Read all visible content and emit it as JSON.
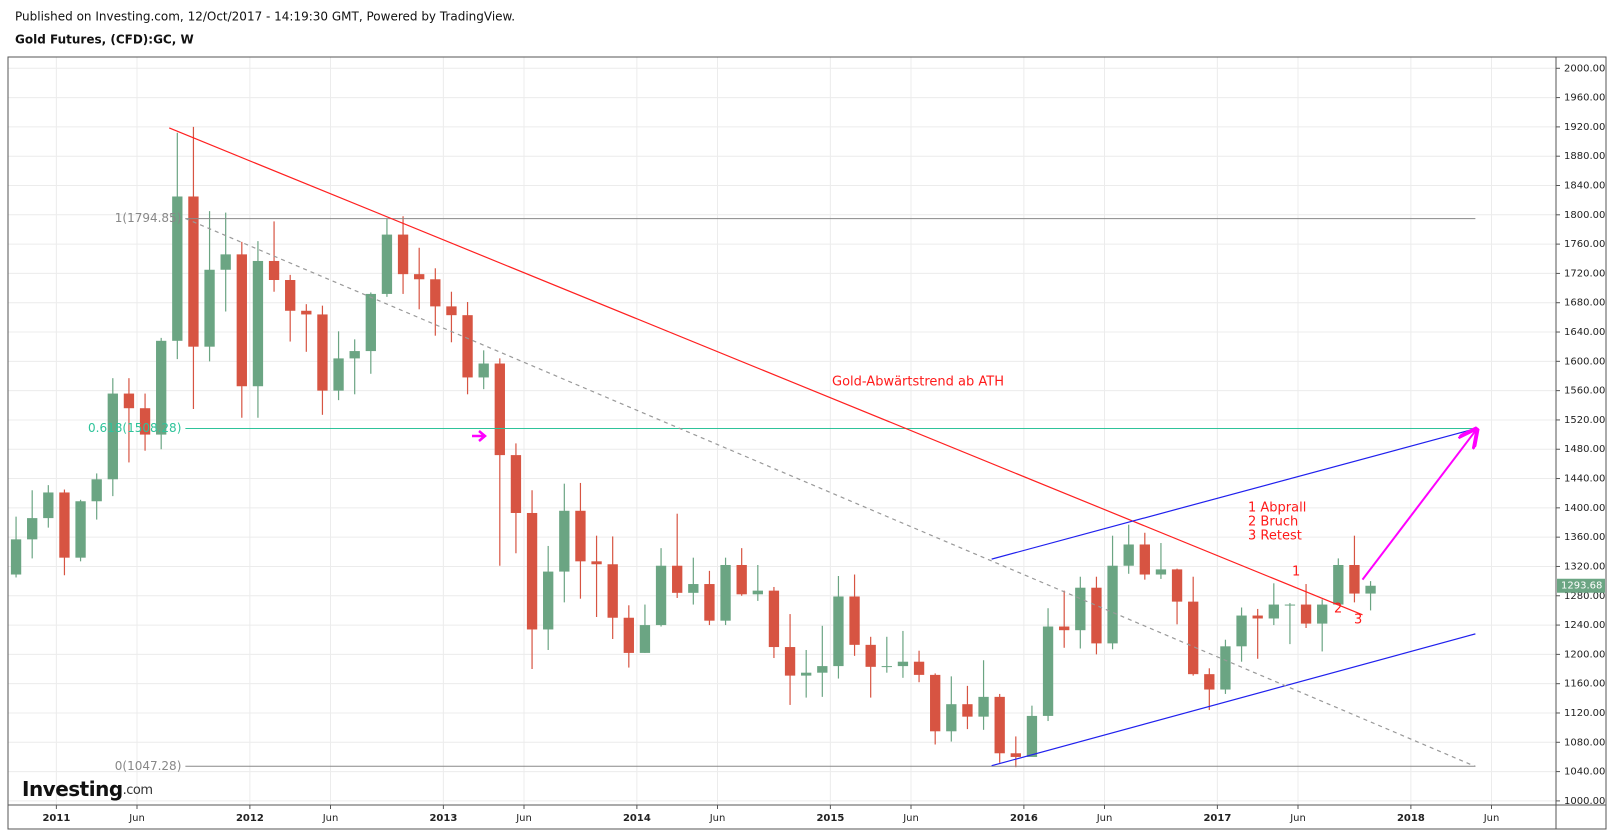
{
  "header": {
    "published": "Published on Investing.com, 12/Oct/2017 - 14:19:30 GMT, Powered by TradingView.",
    "symbol": "Gold Futures, (CFD):GC, W"
  },
  "logo": {
    "name": "Investing",
    "suffix": ".com"
  },
  "chart_data": {
    "type": "candlestick",
    "x": [
      "2010-10",
      "2010-11",
      "2010-12",
      "2011-01",
      "2011-02",
      "2011-03",
      "2011-04",
      "2011-05",
      "2011-06",
      "2011-07",
      "2011-08",
      "2011-09",
      "2011-10",
      "2011-11",
      "2011-12",
      "2012-01",
      "2012-02",
      "2012-03",
      "2012-04",
      "2012-05",
      "2012-06",
      "2012-07",
      "2012-08",
      "2012-09",
      "2012-10",
      "2012-11",
      "2012-12",
      "2013-01",
      "2013-02",
      "2013-03",
      "2013-04",
      "2013-05",
      "2013-06",
      "2013-07",
      "2013-08",
      "2013-09",
      "2013-10",
      "2013-11",
      "2013-12",
      "2014-01",
      "2014-02",
      "2014-03",
      "2014-04",
      "2014-05",
      "2014-06",
      "2014-07",
      "2014-08",
      "2014-09",
      "2014-10",
      "2014-11",
      "2014-12",
      "2015-01",
      "2015-02",
      "2015-03",
      "2015-04",
      "2015-05",
      "2015-06",
      "2015-07",
      "2015-08",
      "2015-09",
      "2015-10",
      "2015-11",
      "2015-12",
      "2016-01",
      "2016-02",
      "2016-03",
      "2016-04",
      "2016-05",
      "2016-06",
      "2016-07",
      "2016-08",
      "2016-09",
      "2016-10",
      "2016-11",
      "2016-12",
      "2017-01",
      "2017-02",
      "2017-03",
      "2017-04",
      "2017-05",
      "2017-06",
      "2017-07",
      "2017-08",
      "2017-09",
      "2017-10"
    ],
    "open": [
      1309,
      1357,
      1386,
      1421,
      1332,
      1409,
      1439,
      1556,
      1536,
      1500,
      1628,
      1825,
      1620,
      1725,
      1746,
      1566,
      1737,
      1711,
      1669,
      1664,
      1560,
      1604,
      1614,
      1692,
      1773,
      1719,
      1712,
      1675,
      1663,
      1578,
      1597,
      1472,
      1393,
      1234,
      1313,
      1396,
      1327,
      1323,
      1250,
      1202,
      1240,
      1321,
      1284,
      1296,
      1246,
      1322,
      1282,
      1287,
      1210,
      1171,
      1175,
      1184,
      1279,
      1213,
      1183,
      1184,
      1190,
      1172,
      1095,
      1132,
      1115,
      1142,
      1065,
      1060,
      1116,
      1238,
      1233,
      1291,
      1215,
      1321,
      1350,
      1309,
      1316,
      1272,
      1173,
      1152,
      1211,
      1253,
      1249,
      1268,
      1268,
      1242,
      1268,
      1322,
      1283
    ],
    "high": [
      1388,
      1424,
      1431,
      1425,
      1411,
      1447,
      1577,
      1577,
      1556,
      1632,
      1912,
      1920,
      1805,
      1803,
      1763,
      1764,
      1791,
      1718,
      1678,
      1676,
      1641,
      1630,
      1694,
      1795,
      1798,
      1755,
      1727,
      1695,
      1681,
      1615,
      1604,
      1488,
      1424,
      1348,
      1433,
      1434,
      1362,
      1361,
      1267,
      1268,
      1345,
      1392,
      1332,
      1314,
      1332,
      1345,
      1322,
      1292,
      1255,
      1206,
      1239,
      1307,
      1309,
      1224,
      1224,
      1232,
      1205,
      1174,
      1170,
      1157,
      1192,
      1146,
      1088,
      1130,
      1263,
      1287,
      1306,
      1306,
      1362,
      1377,
      1366,
      1352,
      1317,
      1306,
      1181,
      1220,
      1264,
      1262,
      1297,
      1270,
      1296,
      1275,
      1331,
      1362,
      1300
    ],
    "low": [
      1305,
      1331,
      1373,
      1308,
      1327,
      1384,
      1416,
      1462,
      1478,
      1480,
      1603,
      1535,
      1600,
      1668,
      1523,
      1523,
      1695,
      1627,
      1613,
      1527,
      1547,
      1555,
      1583,
      1688,
      1692,
      1671,
      1635,
      1626,
      1555,
      1562,
      1321,
      1338,
      1180,
      1206,
      1271,
      1276,
      1251,
      1221,
      1182,
      1202,
      1238,
      1277,
      1268,
      1240,
      1240,
      1280,
      1273,
      1195,
      1131,
      1141,
      1142,
      1167,
      1198,
      1141,
      1175,
      1168,
      1162,
      1077,
      1081,
      1098,
      1097,
      1052,
      1046,
      1062,
      1109,
      1209,
      1208,
      1200,
      1207,
      1310,
      1302,
      1303,
      1241,
      1171,
      1124,
      1146,
      1190,
      1194,
      1240,
      1214,
      1236,
      1204,
      1267,
      1271,
      1260
    ],
    "close": [
      1357,
      1386,
      1421,
      1332,
      1409,
      1439,
      1556,
      1536,
      1500,
      1628,
      1825,
      1620,
      1725,
      1746,
      1566,
      1737,
      1711,
      1669,
      1664,
      1560,
      1604,
      1614,
      1692,
      1773,
      1719,
      1712,
      1675,
      1663,
      1578,
      1597,
      1472,
      1393,
      1234,
      1313,
      1396,
      1327,
      1323,
      1250,
      1202,
      1240,
      1321,
      1284,
      1296,
      1246,
      1322,
      1282,
      1287,
      1210,
      1171,
      1175,
      1184,
      1279,
      1213,
      1183,
      1184,
      1190,
      1172,
      1095,
      1132,
      1115,
      1142,
      1065,
      1060,
      1116,
      1238,
      1233,
      1291,
      1215,
      1321,
      1350,
      1309,
      1316,
      1272,
      1173,
      1152,
      1211,
      1253,
      1249,
      1268,
      1268,
      1242,
      1268,
      1322,
      1283,
      1293.68
    ],
    "up_color": "#6ba583",
    "down_color": "#d75442",
    "xlim": [
      "2010-10",
      "2018-10"
    ],
    "xticks": [
      {
        "value": "2011-01",
        "label": "2011"
      },
      {
        "value": "2011-06",
        "label": "Jun"
      },
      {
        "value": "2012-01",
        "label": "2012"
      },
      {
        "value": "2012-06",
        "label": "Jun"
      },
      {
        "value": "2013-01",
        "label": "2013"
      },
      {
        "value": "2013-06",
        "label": "Jun"
      },
      {
        "value": "2014-01",
        "label": "2014"
      },
      {
        "value": "2014-06",
        "label": "Jun"
      },
      {
        "value": "2015-01",
        "label": "2015"
      },
      {
        "value": "2015-06",
        "label": "Jun"
      },
      {
        "value": "2016-01",
        "label": "2016"
      },
      {
        "value": "2016-06",
        "label": "Jun"
      },
      {
        "value": "2017-01",
        "label": "2017"
      },
      {
        "value": "2017-06",
        "label": "Jun"
      },
      {
        "value": "2018-01",
        "label": "2018"
      },
      {
        "value": "2018-06",
        "label": "Jun"
      }
    ],
    "ylim": [
      994.4,
      2015.4
    ],
    "yticks": [
      {
        "value": 1000,
        "label": "1000.00"
      },
      {
        "value": 1040,
        "label": "1040.00"
      },
      {
        "value": 1080,
        "label": "1080.00"
      },
      {
        "value": 1120,
        "label": "1120.00"
      },
      {
        "value": 1160,
        "label": "1160.00"
      },
      {
        "value": 1200,
        "label": "1200.00"
      },
      {
        "value": 1240,
        "label": "1240.00"
      },
      {
        "value": 1280,
        "label": "1280.00"
      },
      {
        "value": 1320,
        "label": "1320.00"
      },
      {
        "value": 1360,
        "label": "1360.00"
      },
      {
        "value": 1400,
        "label": "1400.00"
      },
      {
        "value": 1440,
        "label": "1440.00"
      },
      {
        "value": 1480,
        "label": "1480.00"
      },
      {
        "value": 1520,
        "label": "1520.00"
      },
      {
        "value": 1560,
        "label": "1560.00"
      },
      {
        "value": 1600,
        "label": "1600.00"
      },
      {
        "value": 1640,
        "label": "1640.00"
      },
      {
        "value": 1680,
        "label": "1680.00"
      },
      {
        "value": 1720,
        "label": "1720.00"
      },
      {
        "value": 1760,
        "label": "1760.00"
      },
      {
        "value": 1800,
        "label": "1800.00"
      },
      {
        "value": 1840,
        "label": "1840.00"
      },
      {
        "value": 1880,
        "label": "1880.00"
      },
      {
        "value": 1920,
        "label": "1920.00"
      },
      {
        "value": 1960,
        "label": "1960.00"
      },
      {
        "value": 2000,
        "label": "2000.00"
      }
    ],
    "grid": true,
    "fib_levels": [
      {
        "value": 1794.85,
        "label": "1(1794.85)",
        "color": "#888888"
      },
      {
        "value": 1508.28,
        "label": "0.618(1508.28)",
        "color": "#2ec39a"
      },
      {
        "value": 1047.28,
        "label": "0(1047.28)",
        "color": "#888888"
      }
    ],
    "fib_span": [
      "2011-09",
      "2018-05"
    ],
    "trendlines": [
      {
        "x": [
          "2011-08",
          "2017-10"
        ],
        "y": [
          1918.5,
          1254
        ],
        "color": "#ff2020",
        "dash": false
      },
      {
        "x": [
          "2015-11",
          "2018-05"
        ],
        "y": [
          1330,
          1508
        ],
        "color": "#2020ee",
        "dash": false
      },
      {
        "x": [
          "2015-11",
          "2018-05"
        ],
        "y": [
          1048,
          1228
        ],
        "color": "#2020ee",
        "dash": false
      },
      {
        "x": [
          "2011-09",
          "2018-05"
        ],
        "y": [
          1795,
          1047
        ],
        "color": "#999999",
        "dash": true
      },
      {
        "x": [
          "2017-10",
          "2018-05"
        ],
        "y": [
          1302,
          1505
        ],
        "color": "#ff00ff",
        "dash": false,
        "arrow": true
      }
    ],
    "annotations": {
      "trend": "Gold-Abwärtstrend ab ATH",
      "legend1": "1 Abprall",
      "legend2": "2 Bruch",
      "legend3": "3 Retest",
      "n1": "1",
      "n2": "2",
      "n3": "3"
    }
  }
}
